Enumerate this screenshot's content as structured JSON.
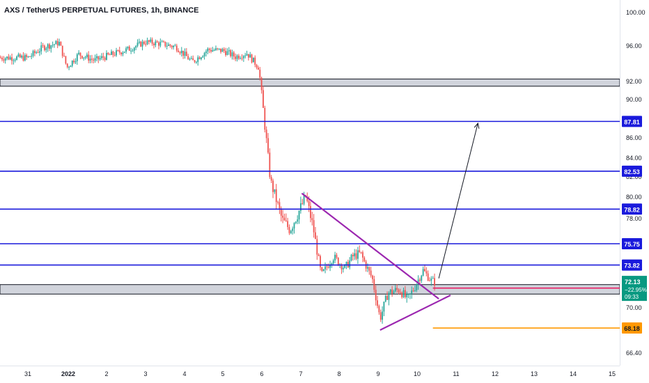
{
  "header": {
    "title": "AXS / TetherUS PERPETUAL FUTURES, 1h, BINANCE"
  },
  "colors": {
    "up": "#26a69a",
    "down": "#ef5350",
    "blue_line": "#1a1adc",
    "purple": "#9c27b0",
    "orange": "#ff9800",
    "pink": "#e91e63",
    "teal": "#089981",
    "zone": "#d1d4dc"
  },
  "chart_data": {
    "type": "candlestick",
    "title": "AXS / TetherUS PERPETUAL FUTURES, 1h, BINANCE",
    "ylim": [
      65.5,
      101.0
    ],
    "y_ticks": [
      "100.00",
      "96.00",
      "92.00",
      "90.00",
      "88.00",
      "86.00",
      "84.00",
      "82.00",
      "80.00",
      "78.00",
      "76.00",
      "74.00",
      "72.00",
      "70.00",
      "68.00",
      "66.40"
    ],
    "x_ticks": [
      "31",
      "2022",
      "2",
      "3",
      "4",
      "5",
      "6",
      "7",
      "8",
      "9",
      "10",
      "11",
      "12",
      "13",
      "14",
      "15"
    ],
    "approx_close_path": [
      {
        "x": 0.0,
        "y": 94.6
      },
      {
        "x": 0.4,
        "y": 95.8
      },
      {
        "x": 0.8,
        "y": 96.3
      },
      {
        "x": 1.0,
        "y": 93.5
      },
      {
        "x": 1.3,
        "y": 95.0
      },
      {
        "x": 1.7,
        "y": 94.3
      },
      {
        "x": 2.1,
        "y": 94.9
      },
      {
        "x": 2.6,
        "y": 95.6
      },
      {
        "x": 3.0,
        "y": 96.4
      },
      {
        "x": 3.4,
        "y": 96.2
      },
      {
        "x": 3.8,
        "y": 95.8
      },
      {
        "x": 4.2,
        "y": 94.1
      },
      {
        "x": 4.6,
        "y": 95.5
      },
      {
        "x": 5.0,
        "y": 95.4
      },
      {
        "x": 5.3,
        "y": 94.7
      },
      {
        "x": 5.6,
        "y": 95.1
      },
      {
        "x": 5.9,
        "y": 93.5
      },
      {
        "x": 6.05,
        "y": 87.5
      },
      {
        "x": 6.2,
        "y": 81.5
      },
      {
        "x": 6.5,
        "y": 77.8
      },
      {
        "x": 6.7,
        "y": 77.0
      },
      {
        "x": 6.9,
        "y": 78.4
      },
      {
        "x": 7.1,
        "y": 80.0
      },
      {
        "x": 7.3,
        "y": 77.0
      },
      {
        "x": 7.5,
        "y": 72.8
      },
      {
        "x": 7.8,
        "y": 74.6
      },
      {
        "x": 8.1,
        "y": 73.5
      },
      {
        "x": 8.3,
        "y": 74.6
      },
      {
        "x": 8.5,
        "y": 74.9
      },
      {
        "x": 8.8,
        "y": 72.5
      },
      {
        "x": 9.0,
        "y": 69.0
      },
      {
        "x": 9.2,
        "y": 71.2
      },
      {
        "x": 9.5,
        "y": 71.5
      },
      {
        "x": 9.7,
        "y": 70.6
      },
      {
        "x": 9.9,
        "y": 71.8
      },
      {
        "x": 10.1,
        "y": 73.3
      },
      {
        "x": 10.3,
        "y": 72.3
      },
      {
        "x": 10.4,
        "y": 72.13
      }
    ],
    "horizontal_levels": [
      {
        "value": 87.81,
        "label": "87.81",
        "color": "#1a1adc"
      },
      {
        "value": 82.53,
        "label": "82.53",
        "color": "#1a1adc"
      },
      {
        "value": 78.82,
        "label": "78.82",
        "color": "#1a1adc"
      },
      {
        "value": 75.75,
        "label": "75.75",
        "color": "#1a1adc"
      },
      {
        "value": 73.82,
        "label": "73.82",
        "color": "#1a1adc"
      }
    ],
    "zones": [
      {
        "from": 91.4,
        "to": 92.2
      },
      {
        "from": 71.1,
        "to": 71.9
      }
    ],
    "triangle": {
      "upper": [
        {
          "x": 7.0,
          "y": 80.3
        },
        {
          "x": 10.5,
          "y": 70.7
        }
      ],
      "lower": [
        {
          "x": 9.0,
          "y": 68.0
        },
        {
          "x": 10.8,
          "y": 71.0
        }
      ]
    },
    "projection_arrow": [
      {
        "x": 10.5,
        "y": 72.5
      },
      {
        "x": 11.5,
        "y": 87.6
      }
    ],
    "orange_level": {
      "value": 68.18,
      "label": "68.18",
      "from_x": 10.35
    },
    "pink_level": {
      "value": 71.37,
      "label": "71.37",
      "from_x": 10.35
    },
    "current": {
      "price": "72.13",
      "change": "−22.95%",
      "countdown": "09:33"
    }
  }
}
